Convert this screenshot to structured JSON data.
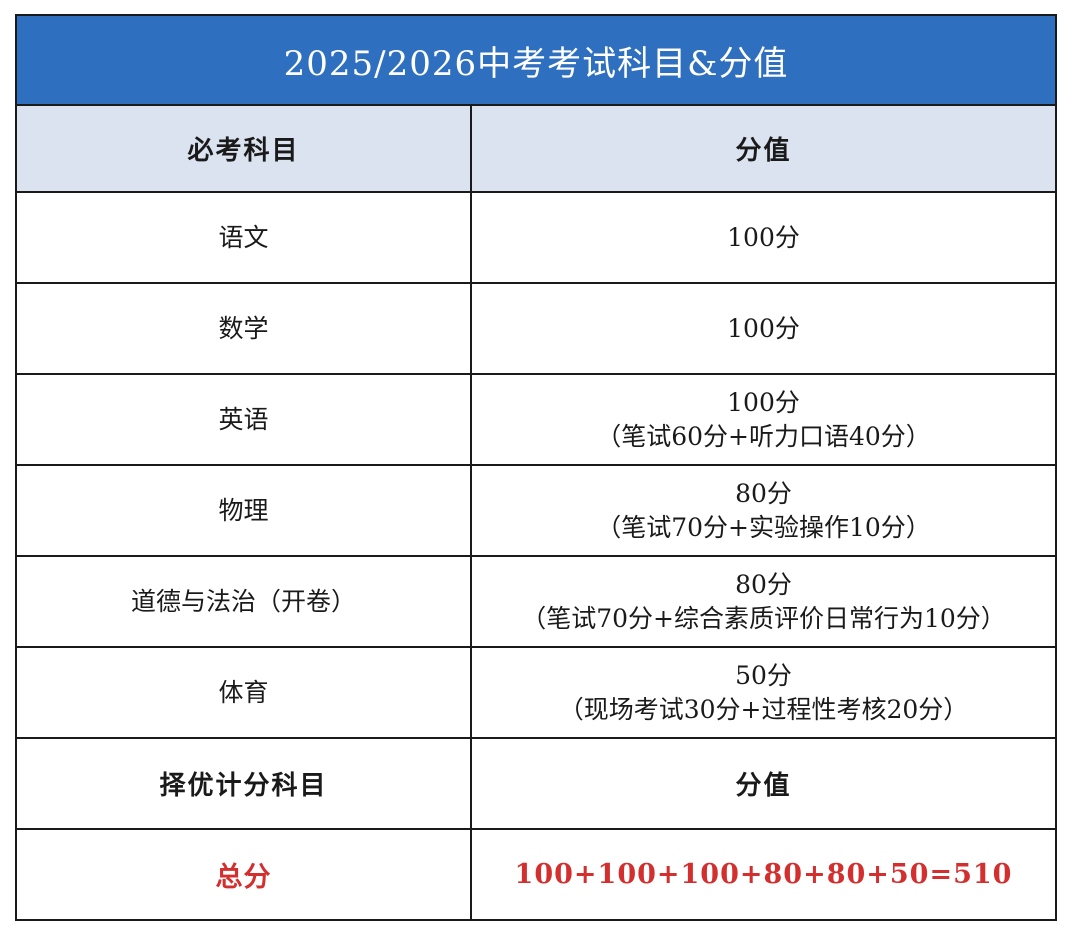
{
  "title": "2025/2026中考考试科目&分值",
  "header": {
    "subject": "必考科目",
    "score": "分值"
  },
  "subjects": [
    {
      "name": "语文",
      "score": "100分",
      "detail": ""
    },
    {
      "name": "数学",
      "score": "100分",
      "detail": ""
    },
    {
      "name": "英语",
      "score": "100分",
      "detail": "（笔试60分+听力口语40分）"
    },
    {
      "name": "物理",
      "score": "80分",
      "detail": "（笔试70分+实验操作10分）"
    },
    {
      "name": "道德与法治（开卷）",
      "score": "80分",
      "detail": "（笔试70分+综合素质评价日常行为10分）"
    },
    {
      "name": "体育",
      "score": "50分",
      "detail": "（现场考试30分+过程性考核20分）"
    }
  ],
  "elective_header": {
    "subject": "择优计分科目",
    "score": "分值"
  },
  "total": {
    "label": "总分",
    "value": "100+100+100+80+80+50=510"
  },
  "colors": {
    "title_bg": "#2f6fbf",
    "header_bg": "#dce3f0",
    "total_text": "#d32f2f"
  }
}
